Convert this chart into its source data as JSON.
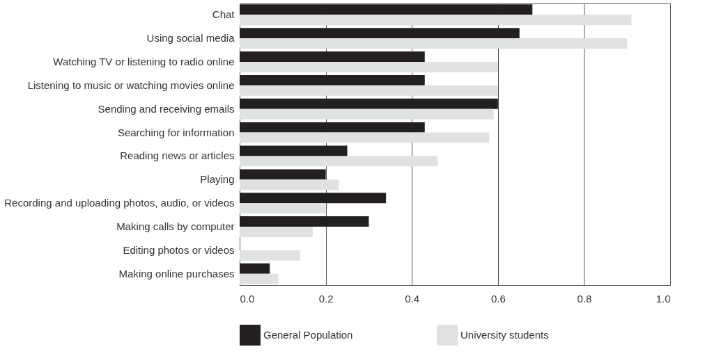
{
  "chart_data": {
    "type": "bar",
    "orientation": "horizontal",
    "categories": [
      "Chat",
      "Using social media",
      "Watching TV or listening to radio online",
      "Listening to music or watching movies online",
      "Sending and receiving emails",
      "Searching for information",
      "Reading news or articles",
      "Playing ",
      "Recording and uploading photos, audio, or videos",
      "Making calls by computer",
      "Editing photos or videos",
      "Making online purchases"
    ],
    "series": [
      {
        "name": "General Population",
        "color": "#231f20",
        "values": [
          0.68,
          0.65,
          0.43,
          0.43,
          0.6,
          0.43,
          0.25,
          0.2,
          0.34,
          0.3,
          null,
          0.07
        ]
      },
      {
        "name": "University students",
        "color": "#e0e1e3",
        "values": [
          0.91,
          0.9,
          0.6,
          0.6,
          0.59,
          0.58,
          0.46,
          0.23,
          0.2,
          0.17,
          0.14,
          0.09
        ]
      }
    ],
    "xlim": [
      0.0,
      1.0
    ],
    "xticks": [
      {
        "value": 0,
        "label": "0.0"
      },
      {
        "value": 0.2,
        "label": "0.2"
      },
      {
        "value": 0.4,
        "label": "0.4"
      },
      {
        "value": 0.6,
        "label": "0.6"
      },
      {
        "value": 0.8,
        "label": "0.8"
      },
      {
        "value": 1.0,
        "label": "1.0"
      }
    ],
    "grid": "x",
    "legend": "bottom"
  }
}
